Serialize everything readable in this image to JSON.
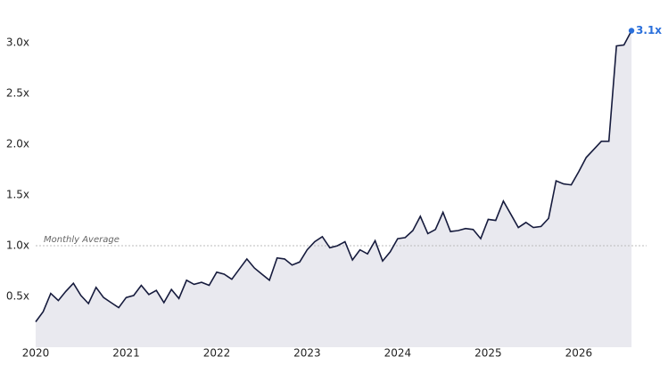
{
  "chart_data": {
    "type": "area",
    "x": [
      2020,
      2020.083,
      2020.167,
      2020.25,
      2020.333,
      2020.417,
      2020.5,
      2020.583,
      2020.667,
      2020.75,
      2020.833,
      2020.917,
      2021,
      2021.083,
      2021.167,
      2021.25,
      2021.333,
      2021.417,
      2021.5,
      2021.583,
      2021.667,
      2021.75,
      2021.833,
      2021.917,
      2022,
      2022.083,
      2022.167,
      2022.25,
      2022.333,
      2022.417,
      2022.5,
      2022.583,
      2022.667,
      2022.75,
      2022.833,
      2022.917,
      2023,
      2023.083,
      2023.167,
      2023.25,
      2023.333,
      2023.417,
      2023.5,
      2023.583,
      2023.667,
      2023.75,
      2023.833,
      2023.917,
      2024,
      2024.083,
      2024.167,
      2024.25,
      2024.333,
      2024.417,
      2024.5,
      2024.583,
      2024.667,
      2024.75,
      2024.833,
      2024.917,
      2025,
      2025.083,
      2025.167,
      2025.25,
      2025.333,
      2025.417,
      2025.5,
      2025.583,
      2025.667,
      2025.75,
      2025.833,
      2025.917,
      2026,
      2026.083,
      2026.167,
      2026.25,
      2026.333,
      2026.417,
      2026.5,
      2026.583
    ],
    "series": [
      {
        "color": "#161b3d",
        "fill": "#e9e9ef",
        "marker_color": "#2a6fdb",
        "values": [
          0.25,
          0.35,
          0.53,
          0.46,
          0.55,
          0.63,
          0.51,
          0.43,
          0.59,
          0.49,
          0.44,
          0.39,
          0.49,
          0.51,
          0.61,
          0.52,
          0.56,
          0.44,
          0.57,
          0.48,
          0.66,
          0.62,
          0.64,
          0.61,
          0.74,
          0.72,
          0.67,
          0.77,
          0.87,
          0.78,
          0.72,
          0.66,
          0.88,
          0.87,
          0.81,
          0.84,
          0.96,
          1.04,
          1.09,
          0.98,
          1.0,
          1.04,
          0.86,
          0.96,
          0.92,
          1.05,
          0.85,
          0.94,
          1.07,
          1.08,
          1.15,
          1.29,
          1.12,
          1.16,
          1.33,
          1.14,
          1.15,
          1.17,
          1.16,
          1.07,
          1.26,
          1.25,
          1.44,
          1.31,
          1.18,
          1.23,
          1.18,
          1.19,
          1.27,
          1.64,
          1.61,
          1.6,
          1.73,
          1.87,
          1.95,
          2.03,
          2.03,
          2.97,
          2.98,
          3.12
        ],
        "value_labels": [
          null,
          null,
          null,
          null,
          null,
          null,
          null,
          null,
          null,
          null,
          null,
          null,
          null,
          null,
          null,
          null,
          null,
          null,
          null,
          null,
          null,
          null,
          null,
          null,
          null,
          null,
          null,
          null,
          null,
          null,
          null,
          null,
          null,
          null,
          null,
          null,
          null,
          null,
          null,
          null,
          null,
          null,
          null,
          null,
          null,
          null,
          null,
          null,
          null,
          null,
          null,
          null,
          null,
          null,
          null,
          null,
          null,
          null,
          null,
          null,
          null,
          null,
          null,
          null,
          null,
          null,
          null,
          null,
          null,
          null,
          null,
          null,
          null,
          null,
          null,
          null,
          null,
          null,
          null,
          "3.1x"
        ]
      }
    ],
    "xlim": [
      2020,
      2026.75
    ],
    "xticks": [
      2020,
      2021,
      2022,
      2023,
      2024,
      2025,
      2026
    ],
    "ylim": [
      0,
      3.3
    ],
    "yticks": [
      {
        "value": 0.5,
        "label": "0.5x"
      },
      {
        "value": 1.0,
        "label": "1.0x"
      },
      {
        "value": 1.5,
        "label": "1.5x"
      },
      {
        "value": 2.0,
        "label": "2.0x"
      },
      {
        "value": 2.5,
        "label": "2.5x"
      },
      {
        "value": 3.0,
        "label": "3.0x"
      }
    ],
    "reference_line": {
      "value": 1.0,
      "label": "Monthly Average",
      "color": "#bbbbbb"
    },
    "grid": false
  }
}
